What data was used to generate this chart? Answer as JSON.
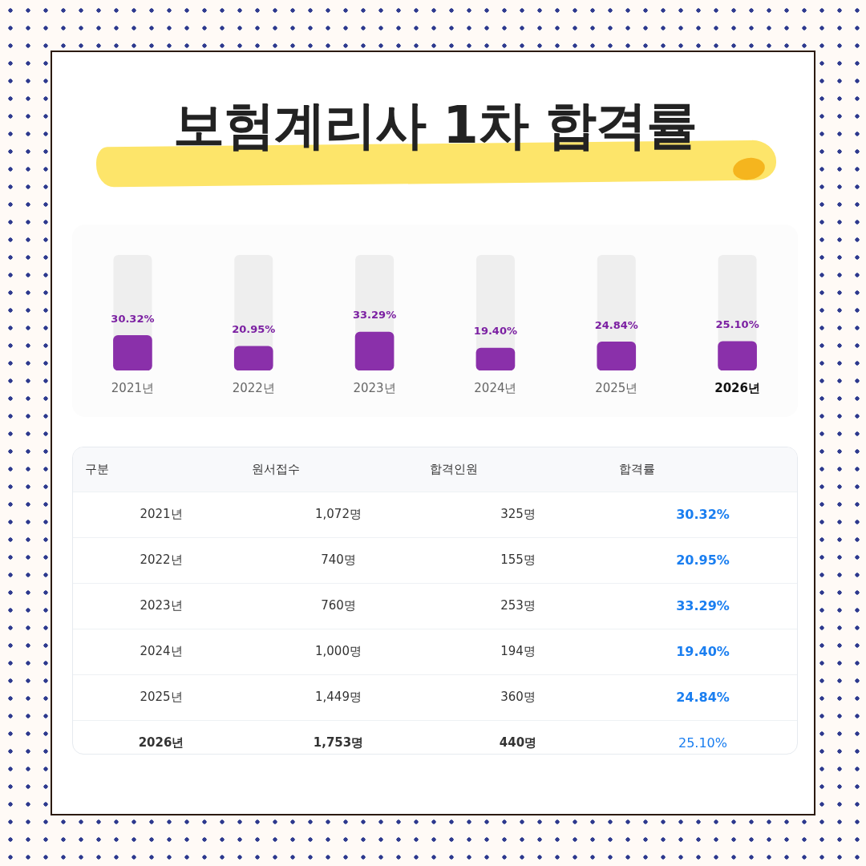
{
  "chart_data": [
    {
      "type": "bar",
      "title": "보험계리사 1차 합격률",
      "categories": [
        "2021년",
        "2022년",
        "2023년",
        "2024년",
        "2025년",
        "2026년"
      ],
      "values": [
        30.32,
        20.95,
        33.29,
        19.4,
        24.84,
        25.1
      ],
      "value_labels": [
        "30.32%",
        "20.95%",
        "33.29%",
        "19.40%",
        "24.84%",
        "25.10%"
      ],
      "color": "#8a30aa",
      "ylim": [
        0,
        100
      ],
      "tick_labels": "x"
    },
    {
      "type": "heatmap",
      "ylabel": "구분",
      "categories": [
        "원서접수",
        "합격인원",
        "합격률"
      ],
      "y_categories": [
        "2021년",
        "2022년",
        "2023년",
        "2024년",
        "2025년",
        "2026년"
      ],
      "cells": [
        [
          1072,
          325,
          30.32
        ],
        [
          740,
          155,
          20.95
        ],
        [
          760,
          253,
          33.29
        ],
        [
          1000,
          194,
          19.4
        ],
        [
          1449,
          360,
          24.84
        ],
        [
          1753,
          440,
          25.1
        ]
      ],
      "cell_labels": [
        [
          "1,072명",
          "325명",
          "30.32%"
        ],
        [
          "740명",
          "155명",
          "20.95%"
        ],
        [
          "760명",
          "253명",
          "33.29%"
        ],
        [
          "1,000명",
          "194명",
          "19.40%"
        ],
        [
          "1,449명",
          "360명",
          "24.84%"
        ],
        [
          "1,753명",
          "440명",
          "25.10%"
        ]
      ]
    }
  ]
}
